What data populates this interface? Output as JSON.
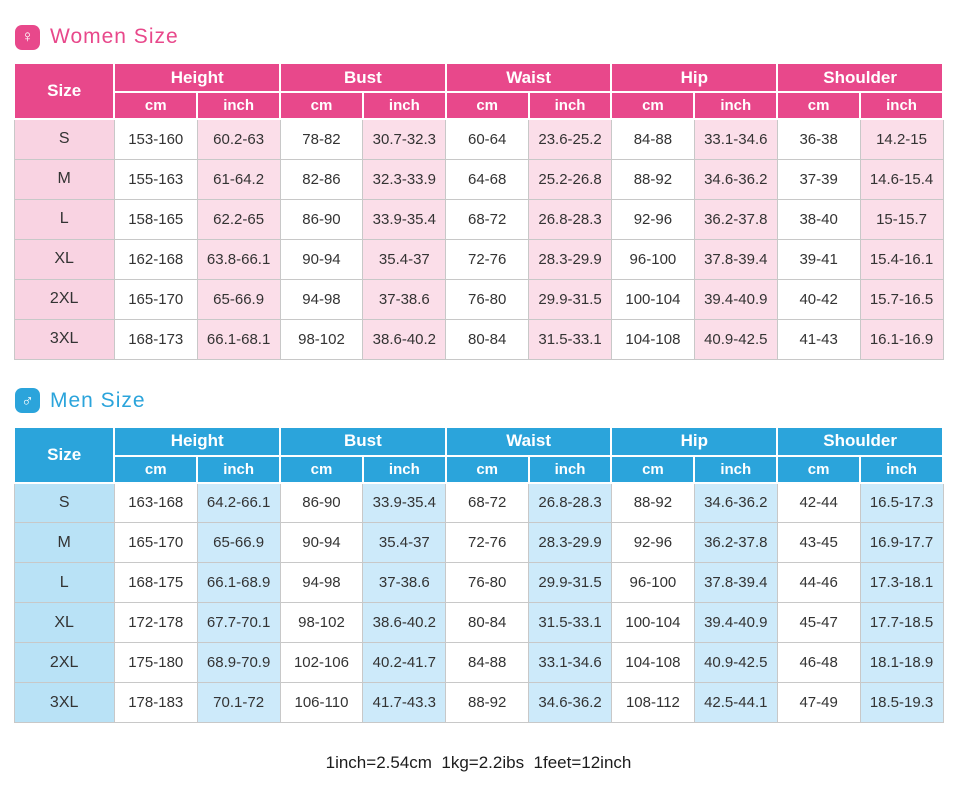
{
  "footer": {
    "note": "1inch=2.54cm  1kg=2.2ibs  1feet=12inch"
  },
  "tables": [
    {
      "id": "women",
      "title": "Women Size",
      "icon": "female-icon",
      "icon_glyph": "♀",
      "size_label": "Size",
      "groups": [
        "Height",
        "Bust",
        "Waist",
        "Hip",
        "Shoulder"
      ],
      "units": [
        "cm",
        "inch"
      ],
      "theme": {
        "accent": "#e8488b",
        "header_bg": "#e8488b",
        "size_col_bg": "#f9d3e2",
        "alt_col_bg": "#fbdee9",
        "cell_bg": "#ffffff"
      },
      "rows": [
        {
          "size": "S",
          "cells": [
            "153-160",
            "60.2-63",
            "78-82",
            "30.7-32.3",
            "60-64",
            "23.6-25.2",
            "84-88",
            "33.1-34.6",
            "36-38",
            "14.2-15"
          ]
        },
        {
          "size": "M",
          "cells": [
            "155-163",
            "61-64.2",
            "82-86",
            "32.3-33.9",
            "64-68",
            "25.2-26.8",
            "88-92",
            "34.6-36.2",
            "37-39",
            "14.6-15.4"
          ]
        },
        {
          "size": "L",
          "cells": [
            "158-165",
            "62.2-65",
            "86-90",
            "33.9-35.4",
            "68-72",
            "26.8-28.3",
            "92-96",
            "36.2-37.8",
            "38-40",
            "15-15.7"
          ]
        },
        {
          "size": "XL",
          "cells": [
            "162-168",
            "63.8-66.1",
            "90-94",
            "35.4-37",
            "72-76",
            "28.3-29.9",
            "96-100",
            "37.8-39.4",
            "39-41",
            "15.4-16.1"
          ]
        },
        {
          "size": "2XL",
          "cells": [
            "165-170",
            "65-66.9",
            "94-98",
            "37-38.6",
            "76-80",
            "29.9-31.5",
            "100-104",
            "39.4-40.9",
            "40-42",
            "15.7-16.5"
          ]
        },
        {
          "size": "3XL",
          "cells": [
            "168-173",
            "66.1-68.1",
            "98-102",
            "38.6-40.2",
            "80-84",
            "31.5-33.1",
            "104-108",
            "40.9-42.5",
            "41-43",
            "16.1-16.9"
          ]
        }
      ]
    },
    {
      "id": "men",
      "title": "Men Size",
      "icon": "male-icon",
      "icon_glyph": "♂",
      "size_label": "Size",
      "groups": [
        "Height",
        "Bust",
        "Waist",
        "Hip",
        "Shoulder"
      ],
      "units": [
        "cm",
        "inch"
      ],
      "theme": {
        "accent": "#2ba4db",
        "header_bg": "#2ba4db",
        "size_col_bg": "#b9e2f6",
        "alt_col_bg": "#cdeafa",
        "cell_bg": "#ffffff"
      },
      "rows": [
        {
          "size": "S",
          "cells": [
            "163-168",
            "64.2-66.1",
            "86-90",
            "33.9-35.4",
            "68-72",
            "26.8-28.3",
            "88-92",
            "34.6-36.2",
            "42-44",
            "16.5-17.3"
          ]
        },
        {
          "size": "M",
          "cells": [
            "165-170",
            "65-66.9",
            "90-94",
            "35.4-37",
            "72-76",
            "28.3-29.9",
            "92-96",
            "36.2-37.8",
            "43-45",
            "16.9-17.7"
          ]
        },
        {
          "size": "L",
          "cells": [
            "168-175",
            "66.1-68.9",
            "94-98",
            "37-38.6",
            "76-80",
            "29.9-31.5",
            "96-100",
            "37.8-39.4",
            "44-46",
            "17.3-18.1"
          ]
        },
        {
          "size": "XL",
          "cells": [
            "172-178",
            "67.7-70.1",
            "98-102",
            "38.6-40.2",
            "80-84",
            "31.5-33.1",
            "100-104",
            "39.4-40.9",
            "45-47",
            "17.7-18.5"
          ]
        },
        {
          "size": "2XL",
          "cells": [
            "175-180",
            "68.9-70.9",
            "102-106",
            "40.2-41.7",
            "84-88",
            "33.1-34.6",
            "104-108",
            "40.9-42.5",
            "46-48",
            "18.1-18.9"
          ]
        },
        {
          "size": "3XL",
          "cells": [
            "178-183",
            "70.1-72",
            "106-110",
            "41.7-43.3",
            "88-92",
            "34.6-36.2",
            "108-112",
            "42.5-44.1",
            "47-49",
            "18.5-19.3"
          ]
        }
      ]
    }
  ]
}
